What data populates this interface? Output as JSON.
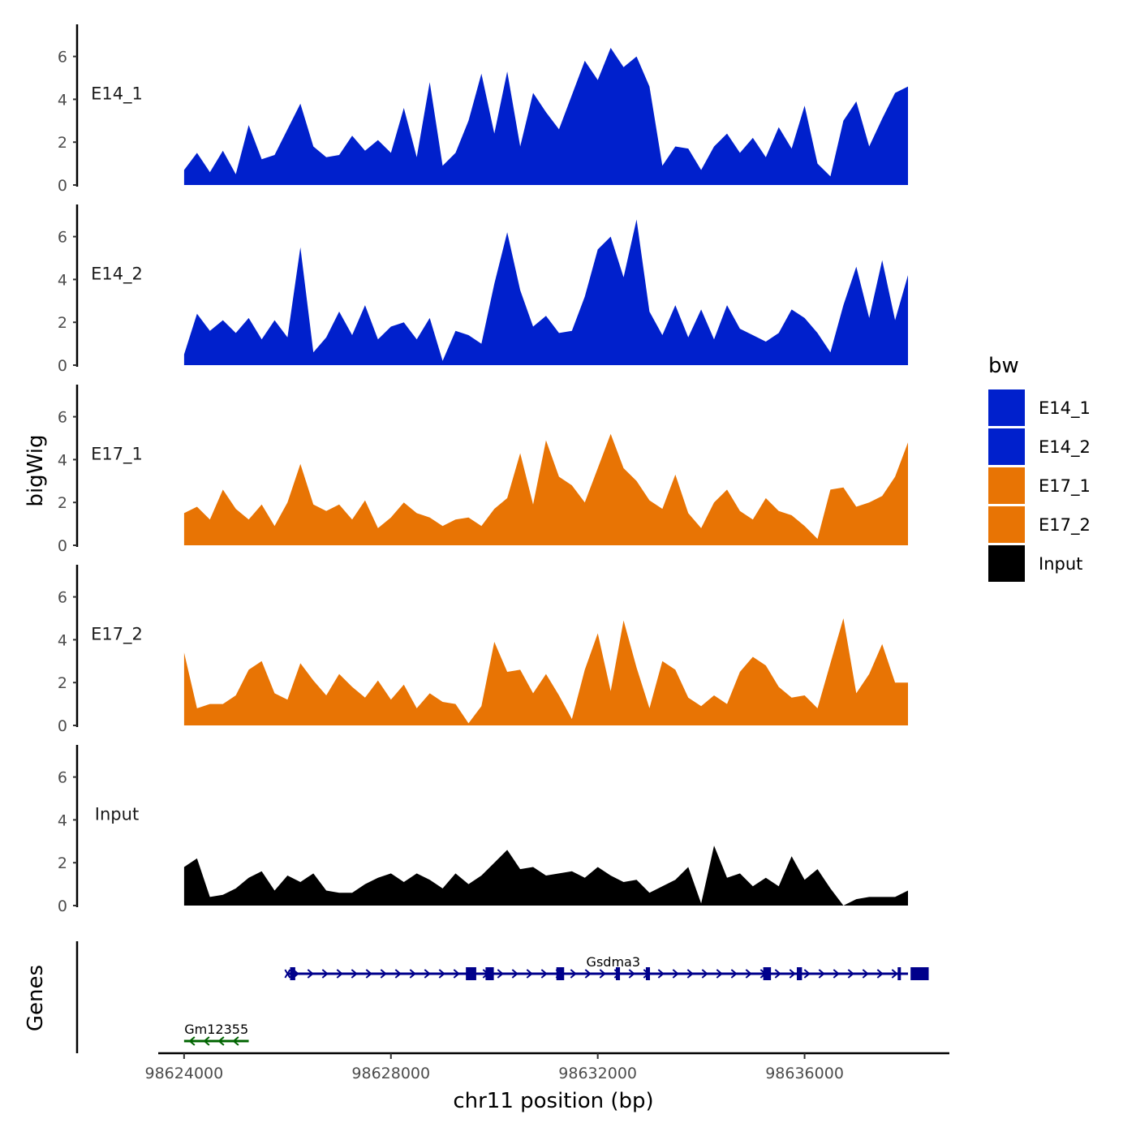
{
  "chart_data": {
    "type": "area",
    "ylabel": "bigWig",
    "xlabel": "chr11 position (bp)",
    "genes_label": "Genes",
    "chromosome": "chr11",
    "xlim": [
      98623500,
      98638800
    ],
    "ylim": [
      0,
      7.5
    ],
    "y_ticks": [
      0,
      2,
      4,
      6
    ],
    "x_ticks": [
      98624000,
      98628000,
      98632000,
      98636000
    ],
    "x_tick_labels": [
      "98624000",
      "98628000",
      "98632000",
      "98636000"
    ],
    "legend": {
      "title": "bw",
      "entries": [
        {
          "label": "E14_1",
          "color": "#0020cc"
        },
        {
          "label": "E14_2",
          "color": "#0020cc"
        },
        {
          "label": "E17_1",
          "color": "#e87404"
        },
        {
          "label": "E17_2",
          "color": "#e87404"
        },
        {
          "label": "Input",
          "color": "#000000"
        }
      ]
    },
    "tracks": [
      {
        "name": "E14_1",
        "color": "#0020cc",
        "x": [
          98624000,
          98624250,
          98624500,
          98624750,
          98625000,
          98625250,
          98625500,
          98625750,
          98626000,
          98626250,
          98626500,
          98626750,
          98627000,
          98627250,
          98627500,
          98627750,
          98628000,
          98628250,
          98628500,
          98628750,
          98629000,
          98629250,
          98629500,
          98629750,
          98630000,
          98630250,
          98630500,
          98630750,
          98631000,
          98631250,
          98631500,
          98631750,
          98632000,
          98632250,
          98632500,
          98632750,
          98633000,
          98633250,
          98633500,
          98633750,
          98634000,
          98634250,
          98634500,
          98634750,
          98635000,
          98635250,
          98635500,
          98635750,
          98636000,
          98636250,
          98636500,
          98636750,
          98637000,
          98637250,
          98637500,
          98637750,
          98638000
        ],
        "values": [
          0.7,
          1.5,
          0.6,
          1.6,
          0.5,
          2.8,
          1.2,
          1.4,
          2.6,
          3.8,
          1.8,
          1.3,
          1.4,
          2.3,
          1.6,
          2.1,
          1.5,
          3.6,
          1.3,
          4.8,
          0.9,
          1.5,
          3.0,
          5.2,
          2.4,
          5.3,
          1.8,
          4.3,
          3.4,
          2.6,
          4.2,
          5.8,
          4.9,
          6.4,
          5.5,
          6.0,
          4.6,
          0.9,
          1.8,
          1.7,
          0.7,
          1.8,
          2.4,
          1.5,
          2.2,
          1.3,
          2.7,
          1.7,
          3.7,
          1.0,
          0.4,
          3.0,
          3.9,
          1.8,
          3.1,
          4.3,
          4.6
        ]
      },
      {
        "name": "E14_2",
        "color": "#0020cc",
        "x": [
          98624000,
          98624250,
          98624500,
          98624750,
          98625000,
          98625250,
          98625500,
          98625750,
          98626000,
          98626250,
          98626500,
          98626750,
          98627000,
          98627250,
          98627500,
          98627750,
          98628000,
          98628250,
          98628500,
          98628750,
          98629000,
          98629250,
          98629500,
          98629750,
          98630000,
          98630250,
          98630500,
          98630750,
          98631000,
          98631250,
          98631500,
          98631750,
          98632000,
          98632250,
          98632500,
          98632750,
          98633000,
          98633250,
          98633500,
          98633750,
          98634000,
          98634250,
          98634500,
          98634750,
          98635000,
          98635250,
          98635500,
          98635750,
          98636000,
          98636250,
          98636500,
          98636750,
          98637000,
          98637250,
          98637500,
          98637750,
          98638000
        ],
        "values": [
          0.5,
          2.4,
          1.6,
          2.1,
          1.5,
          2.2,
          1.2,
          2.1,
          1.3,
          5.5,
          0.6,
          1.3,
          2.5,
          1.4,
          2.8,
          1.2,
          1.8,
          2.0,
          1.2,
          2.2,
          0.2,
          1.6,
          1.4,
          1.0,
          3.8,
          6.2,
          3.5,
          1.8,
          2.3,
          1.5,
          1.6,
          3.2,
          5.4,
          6.0,
          4.1,
          6.8,
          2.5,
          1.4,
          2.8,
          1.3,
          2.6,
          1.2,
          2.8,
          1.7,
          1.4,
          1.1,
          1.5,
          2.6,
          2.2,
          1.5,
          0.6,
          2.8,
          4.6,
          2.2,
          4.9,
          2.1,
          4.2
        ]
      },
      {
        "name": "E17_1",
        "color": "#e87404",
        "x": [
          98624000,
          98624250,
          98624500,
          98624750,
          98625000,
          98625250,
          98625500,
          98625750,
          98626000,
          98626250,
          98626500,
          98626750,
          98627000,
          98627250,
          98627500,
          98627750,
          98628000,
          98628250,
          98628500,
          98628750,
          98629000,
          98629250,
          98629500,
          98629750,
          98630000,
          98630250,
          98630500,
          98630750,
          98631000,
          98631250,
          98631500,
          98631750,
          98632000,
          98632250,
          98632500,
          98632750,
          98633000,
          98633250,
          98633500,
          98633750,
          98634000,
          98634250,
          98634500,
          98634750,
          98635000,
          98635250,
          98635500,
          98635750,
          98636000,
          98636250,
          98636500,
          98636750,
          98637000,
          98637250,
          98637500,
          98637750,
          98638000
        ],
        "values": [
          1.5,
          1.8,
          1.2,
          2.6,
          1.7,
          1.2,
          1.9,
          0.9,
          2.0,
          3.8,
          1.9,
          1.6,
          1.9,
          1.2,
          2.1,
          0.8,
          1.3,
          2.0,
          1.5,
          1.3,
          0.9,
          1.2,
          1.3,
          0.9,
          1.7,
          2.2,
          4.3,
          1.9,
          4.9,
          3.2,
          2.8,
          2.0,
          3.6,
          5.2,
          3.6,
          3.0,
          2.1,
          1.7,
          3.3,
          1.5,
          0.8,
          2.0,
          2.6,
          1.6,
          1.2,
          2.2,
          1.6,
          1.4,
          0.9,
          0.3,
          2.6,
          2.7,
          1.8,
          2.0,
          2.3,
          3.2,
          4.8
        ]
      },
      {
        "name": "E17_2",
        "color": "#e87404",
        "x": [
          98624000,
          98624250,
          98624500,
          98624750,
          98625000,
          98625250,
          98625500,
          98625750,
          98626000,
          98626250,
          98626500,
          98626750,
          98627000,
          98627250,
          98627500,
          98627750,
          98628000,
          98628250,
          98628500,
          98628750,
          98629000,
          98629250,
          98629500,
          98629750,
          98630000,
          98630250,
          98630500,
          98630750,
          98631000,
          98631250,
          98631500,
          98631750,
          98632000,
          98632250,
          98632500,
          98632750,
          98633000,
          98633250,
          98633500,
          98633750,
          98634000,
          98634250,
          98634500,
          98634750,
          98635000,
          98635250,
          98635500,
          98635750,
          98636000,
          98636250,
          98636500,
          98636750,
          98637000,
          98637250,
          98637500,
          98637750,
          98638000
        ],
        "values": [
          3.4,
          0.8,
          1.0,
          1.0,
          1.4,
          2.6,
          3.0,
          1.5,
          1.2,
          2.9,
          2.1,
          1.4,
          2.4,
          1.8,
          1.3,
          2.1,
          1.2,
          1.9,
          0.8,
          1.5,
          1.1,
          1.0,
          0.1,
          0.9,
          3.9,
          2.5,
          2.6,
          1.5,
          2.4,
          1.4,
          0.3,
          2.6,
          4.3,
          1.6,
          4.9,
          2.7,
          0.8,
          3.0,
          2.6,
          1.3,
          0.9,
          1.4,
          1.0,
          2.5,
          3.2,
          2.8,
          1.8,
          1.3,
          1.4,
          0.8,
          2.9,
          5.0,
          1.5,
          2.4,
          3.8,
          2.0,
          2.0
        ]
      },
      {
        "name": "Input",
        "color": "#000000",
        "x": [
          98624000,
          98624250,
          98624500,
          98624750,
          98625000,
          98625250,
          98625500,
          98625750,
          98626000,
          98626250,
          98626500,
          98626750,
          98627000,
          98627250,
          98627500,
          98627750,
          98628000,
          98628250,
          98628500,
          98628750,
          98629000,
          98629250,
          98629500,
          98629750,
          98630000,
          98630250,
          98630500,
          98630750,
          98631000,
          98631250,
          98631500,
          98631750,
          98632000,
          98632250,
          98632500,
          98632750,
          98633000,
          98633250,
          98633500,
          98633750,
          98634000,
          98634250,
          98634500,
          98634750,
          98635000,
          98635250,
          98635500,
          98635750,
          98636000,
          98636250,
          98636500,
          98636750,
          98637000,
          98637250,
          98637500,
          98637750,
          98638000
        ],
        "values": [
          1.8,
          2.2,
          0.4,
          0.5,
          0.8,
          1.3,
          1.6,
          0.7,
          1.4,
          1.1,
          1.5,
          0.7,
          0.6,
          0.6,
          1.0,
          1.3,
          1.5,
          1.1,
          1.5,
          1.2,
          0.8,
          1.5,
          1.0,
          1.4,
          2.0,
          2.6,
          1.7,
          1.8,
          1.4,
          1.5,
          1.6,
          1.3,
          1.8,
          1.4,
          1.1,
          1.2,
          0.6,
          0.9,
          1.2,
          1.8,
          0.1,
          2.8,
          1.3,
          1.5,
          0.9,
          1.3,
          0.9,
          2.3,
          1.2,
          1.7,
          0.8,
          0.0,
          0.3,
          0.4,
          0.4,
          0.4,
          0.7
        ]
      }
    ],
    "genes": [
      {
        "name": "Gm12355",
        "color": "#006400",
        "strand": "-",
        "row": 2,
        "start": 98624000,
        "end": 98625250,
        "exons": []
      },
      {
        "name": "Gsdma3",
        "color": "#00008b",
        "strand": "+",
        "row": 1,
        "start": 98626000,
        "end": 98638000,
        "exons": [
          [
            98626050,
            98626150
          ],
          [
            98629450,
            98629650
          ],
          [
            98629830,
            98629990
          ],
          [
            98631200,
            98631350
          ],
          [
            98632350,
            98632430
          ],
          [
            98632930,
            98633010
          ],
          [
            98635200,
            98635350
          ],
          [
            98635850,
            98635950
          ],
          [
            98637800,
            98637860
          ],
          [
            98638050,
            98638400
          ]
        ]
      }
    ]
  }
}
